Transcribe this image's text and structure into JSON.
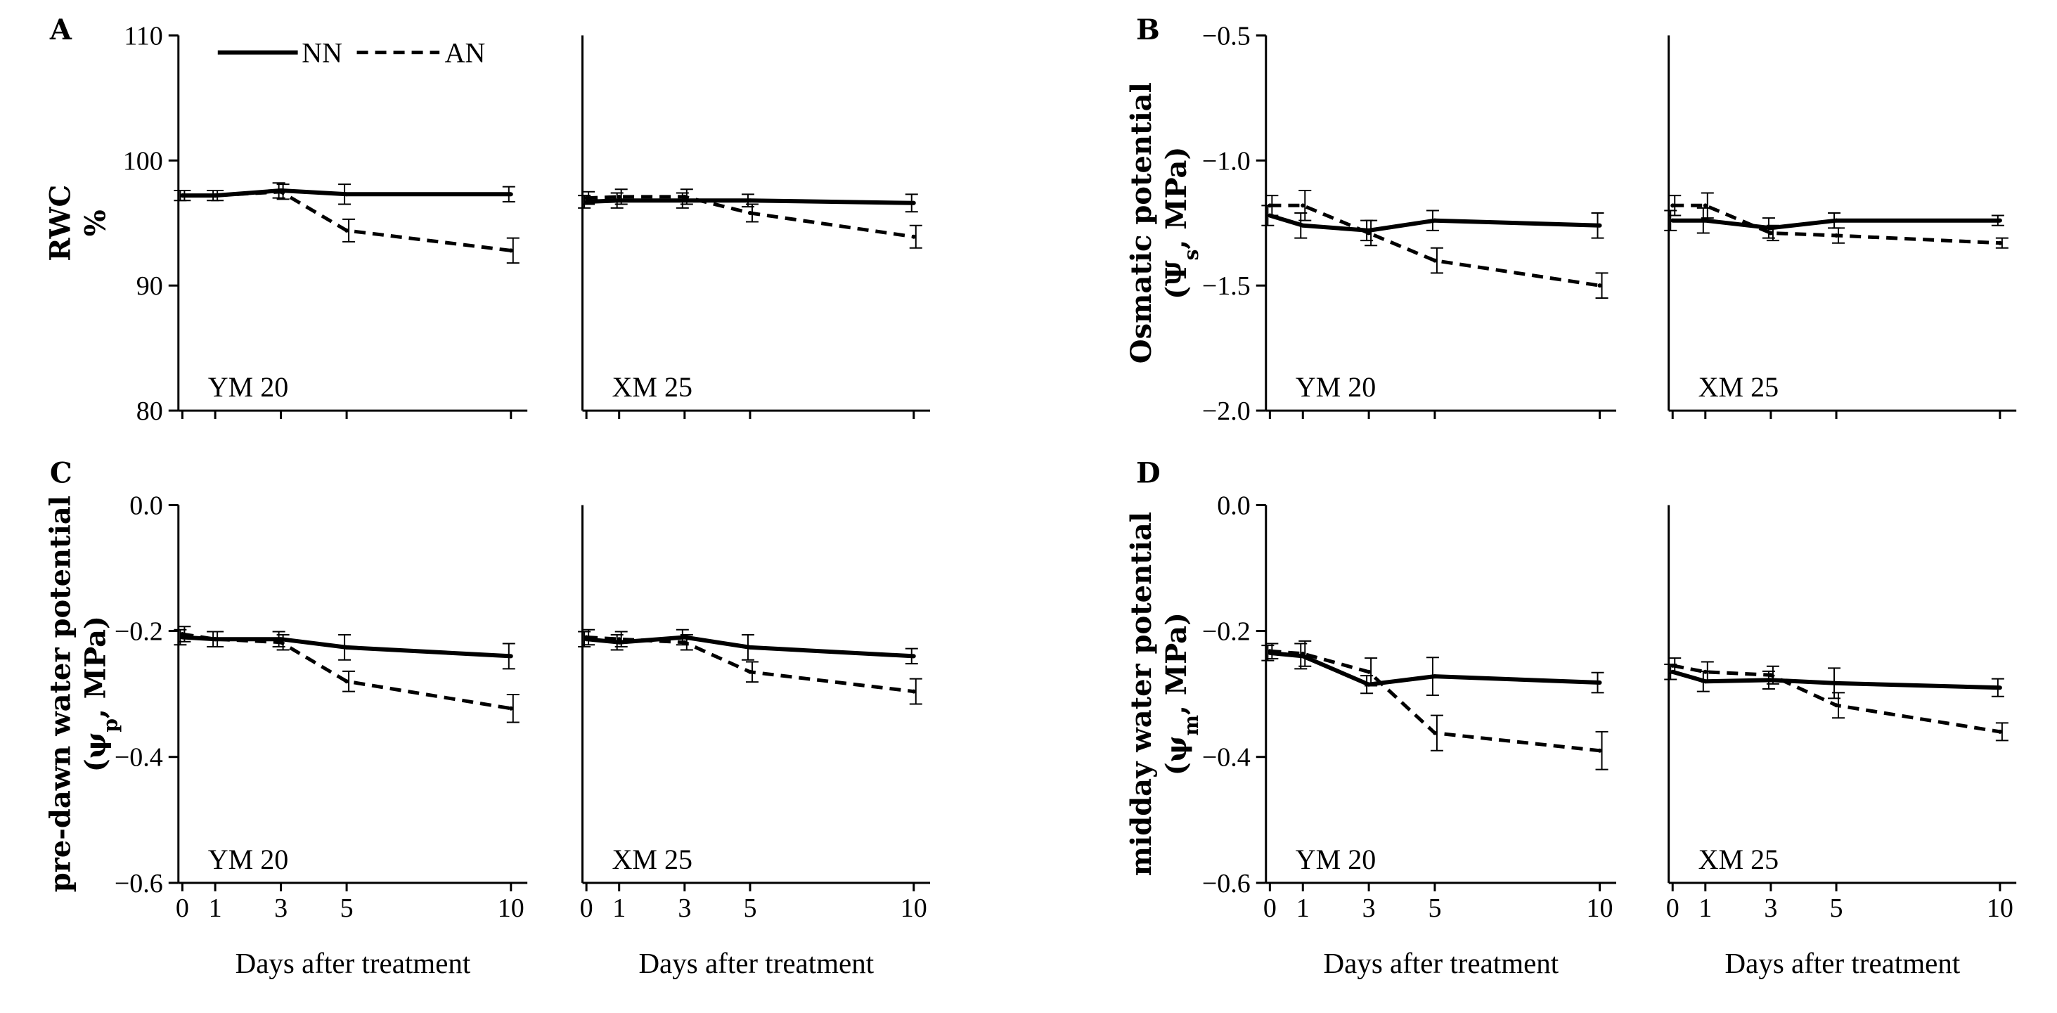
{
  "colors": {
    "ink": "#000000",
    "background": "#ffffff"
  },
  "legend": [
    {
      "name": "NN",
      "style": "solid"
    },
    {
      "name": "AN",
      "style": "dashed"
    }
  ],
  "chart_data": [
    {
      "type": "line",
      "panel": "A",
      "ylabel": "RWC",
      "ylabel_unit": "%",
      "ylim": [
        80,
        110
      ],
      "yticks": [
        80,
        90,
        100,
        110
      ],
      "ytick_labels": [
        "80",
        "90",
        "100",
        "110"
      ],
      "xlabel": "",
      "subplots": [
        {
          "name": "YM 20",
          "x": [
            0,
            1,
            3,
            5,
            10
          ],
          "series": [
            {
              "name": "NN",
              "values": [
                97.2,
                97.2,
                97.6,
                97.3,
                97.3
              ],
              "err": [
                0.4,
                0.4,
                0.6,
                0.8,
                0.6
              ]
            },
            {
              "name": "AN",
              "values": [
                97.2,
                97.2,
                97.5,
                94.4,
                92.8
              ],
              "err": [
                0.4,
                0.4,
                0.6,
                0.9,
                1.0
              ]
            }
          ]
        },
        {
          "name": "XM 25",
          "x": [
            0,
            1,
            3,
            5,
            10
          ],
          "series": [
            {
              "name": "NN",
              "values": [
                96.7,
                96.8,
                96.8,
                96.8,
                96.6
              ],
              "err": [
                0.5,
                0.6,
                0.6,
                0.5,
                0.7
              ]
            },
            {
              "name": "AN",
              "values": [
                97.0,
                97.1,
                97.1,
                95.8,
                93.9
              ],
              "err": [
                0.5,
                0.6,
                0.6,
                0.7,
                0.9
              ]
            }
          ]
        }
      ]
    },
    {
      "type": "line",
      "panel": "B",
      "ylabel": "Osmatic potential",
      "ylabel_sym": "Ψ",
      "ylabel_sub": "s",
      "ylabel_unit": "MPa",
      "ylim": [
        -2.0,
        -0.5
      ],
      "yticks": [
        -2.0,
        -1.5,
        -1.0,
        -0.5
      ],
      "ytick_labels": [
        "−2.0",
        "−1.5",
        "−1.0",
        "−0.5"
      ],
      "xlabel": "",
      "subplots": [
        {
          "name": "YM 20",
          "x": [
            0,
            1,
            3,
            5,
            10
          ],
          "series": [
            {
              "name": "NN",
              "values": [
                -1.22,
                -1.26,
                -1.28,
                -1.24,
                -1.26
              ],
              "err": [
                0.04,
                0.05,
                0.04,
                0.04,
                0.05
              ]
            },
            {
              "name": "AN",
              "values": [
                -1.18,
                -1.18,
                -1.29,
                -1.4,
                -1.5
              ],
              "err": [
                0.04,
                0.06,
                0.05,
                0.05,
                0.05
              ]
            }
          ]
        },
        {
          "name": "XM 25",
          "x": [
            0,
            1,
            3,
            5,
            10
          ],
          "series": [
            {
              "name": "NN",
              "values": [
                -1.24,
                -1.24,
                -1.27,
                -1.24,
                -1.24
              ],
              "err": [
                0.04,
                0.05,
                0.04,
                0.03,
                0.02
              ]
            },
            {
              "name": "AN",
              "values": [
                -1.18,
                -1.18,
                -1.29,
                -1.3,
                -1.33
              ],
              "err": [
                0.04,
                0.05,
                0.03,
                0.03,
                0.02
              ]
            }
          ]
        }
      ]
    },
    {
      "type": "line",
      "panel": "C",
      "ylabel": "pre-dawn water potential",
      "ylabel_sym": "ψ",
      "ylabel_sub": "p",
      "ylabel_unit": "MPa",
      "ylim": [
        -0.6,
        0.0
      ],
      "yticks": [
        -0.6,
        -0.4,
        -0.2,
        0.0
      ],
      "ytick_labels": [
        "−0.6",
        "−0.4",
        "−0.2",
        "0.0"
      ],
      "xlabel": "Days after treatment",
      "subplots": [
        {
          "name": "YM 20",
          "x": [
            0,
            1,
            3,
            5,
            10
          ],
          "series": [
            {
              "name": "NN",
              "values": [
                -0.21,
                -0.213,
                -0.213,
                -0.226,
                -0.24
              ],
              "err": [
                0.012,
                0.012,
                0.012,
                0.02,
                0.02
              ]
            },
            {
              "name": "AN",
              "values": [
                -0.205,
                -0.213,
                -0.218,
                -0.28,
                -0.323
              ],
              "err": [
                0.012,
                0.012,
                0.012,
                0.016,
                0.022
              ]
            }
          ]
        },
        {
          "name": "XM 25",
          "x": [
            0,
            1,
            3,
            5,
            10
          ],
          "series": [
            {
              "name": "NN",
              "values": [
                -0.213,
                -0.218,
                -0.21,
                -0.226,
                -0.24
              ],
              "err": [
                0.012,
                0.012,
                0.012,
                0.02,
                0.012
              ]
            },
            {
              "name": "AN",
              "values": [
                -0.21,
                -0.213,
                -0.218,
                -0.265,
                -0.296
              ],
              "err": [
                0.012,
                0.012,
                0.012,
                0.016,
                0.02
              ]
            }
          ]
        }
      ]
    },
    {
      "type": "line",
      "panel": "D",
      "ylabel": "midday water potential",
      "ylabel_sym": "ψ",
      "ylabel_sub": "m",
      "ylabel_unit": "MPa",
      "ylim": [
        -0.6,
        0.0
      ],
      "yticks": [
        -0.6,
        -0.4,
        -0.2,
        0.0
      ],
      "ytick_labels": [
        "−0.6",
        "−0.4",
        "−0.2",
        "0.0"
      ],
      "xlabel": "Days after treatment",
      "subplots": [
        {
          "name": "YM 20",
          "x": [
            0,
            1,
            3,
            5,
            10
          ],
          "series": [
            {
              "name": "NN",
              "values": [
                -0.235,
                -0.24,
                -0.285,
                -0.272,
                -0.282
              ],
              "err": [
                0.012,
                0.02,
                0.014,
                0.03,
                0.016
              ]
            },
            {
              "name": "AN",
              "values": [
                -0.232,
                -0.236,
                -0.265,
                -0.362,
                -0.39
              ],
              "err": [
                0.012,
                0.02,
                0.022,
                0.028,
                0.03
              ]
            }
          ]
        },
        {
          "name": "XM 25",
          "x": [
            0,
            1,
            3,
            5,
            10
          ],
          "series": [
            {
              "name": "NN",
              "values": [
                -0.265,
                -0.28,
                -0.278,
                -0.283,
                -0.29
              ],
              "err": [
                0.012,
                0.016,
                0.014,
                0.024,
                0.014
              ]
            },
            {
              "name": "AN",
              "values": [
                -0.255,
                -0.265,
                -0.27,
                -0.318,
                -0.36
              ],
              "err": [
                0.012,
                0.016,
                0.014,
                0.02,
                0.014
              ]
            }
          ]
        }
      ]
    }
  ]
}
